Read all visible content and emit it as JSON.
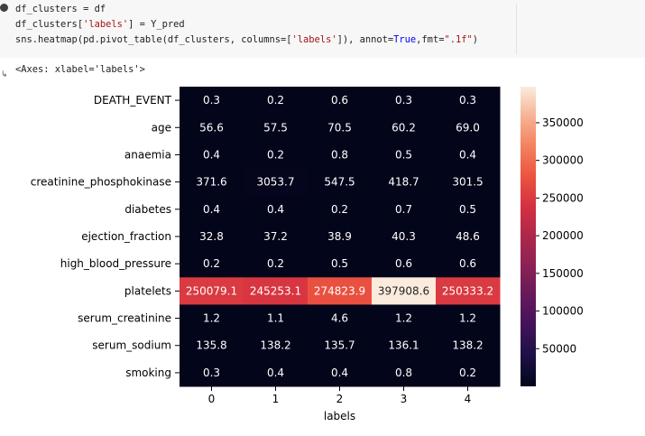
{
  "code_cell": {
    "lines": [
      {
        "segments": [
          {
            "t": "df_clusters = df",
            "c": ""
          }
        ]
      },
      {
        "segments": [
          {
            "t": "df_clusters[",
            "c": ""
          },
          {
            "t": "'labels'",
            "c": "str"
          },
          {
            "t": "] = Y_pred",
            "c": ""
          }
        ]
      },
      {
        "segments": [
          {
            "t": "sns.heatmap(pd.pivot_table(df_clusters, columns=[",
            "c": ""
          },
          {
            "t": "'labels'",
            "c": "str"
          },
          {
            "t": "]), annot=",
            "c": ""
          },
          {
            "t": "True",
            "c": "kw"
          },
          {
            "t": ",fmt=",
            "c": ""
          },
          {
            "t": "\".1f\"",
            "c": "str"
          },
          {
            "t": ")",
            "c": ""
          }
        ]
      }
    ]
  },
  "output": {
    "repr": "<Axes: xlabel='labels'>"
  },
  "chart_data": {
    "type": "heatmap",
    "xlabel": "labels",
    "x_categories": [
      "0",
      "1",
      "2",
      "3",
      "4"
    ],
    "y_categories": [
      "DEATH_EVENT",
      "age",
      "anaemia",
      "creatinine_phosphokinase",
      "diabetes",
      "ejection_fraction",
      "high_blood_pressure",
      "platelets",
      "serum_creatinine",
      "serum_sodium",
      "smoking"
    ],
    "values": [
      [
        0.3,
        0.2,
        0.6,
        0.3,
        0.3
      ],
      [
        56.6,
        57.5,
        70.5,
        60.2,
        69.0
      ],
      [
        0.4,
        0.2,
        0.8,
        0.5,
        0.4
      ],
      [
        371.6,
        3053.7,
        547.5,
        418.7,
        301.5
      ],
      [
        0.4,
        0.4,
        0.2,
        0.7,
        0.5
      ],
      [
        32.8,
        37.2,
        38.9,
        40.3,
        48.6
      ],
      [
        0.2,
        0.2,
        0.5,
        0.6,
        0.6
      ],
      [
        250079.1,
        245253.1,
        274823.9,
        397908.6,
        250333.2
      ],
      [
        1.2,
        1.1,
        4.6,
        1.2,
        1.2
      ],
      [
        135.8,
        138.2,
        135.7,
        136.1,
        138.2
      ],
      [
        0.3,
        0.4,
        0.4,
        0.8,
        0.2
      ]
    ],
    "vmin": 0.2,
    "vmax": 397908.6,
    "colormap": "rocket",
    "colorbar_ticks": [
      50000,
      100000,
      150000,
      200000,
      250000,
      300000,
      350000
    ]
  }
}
